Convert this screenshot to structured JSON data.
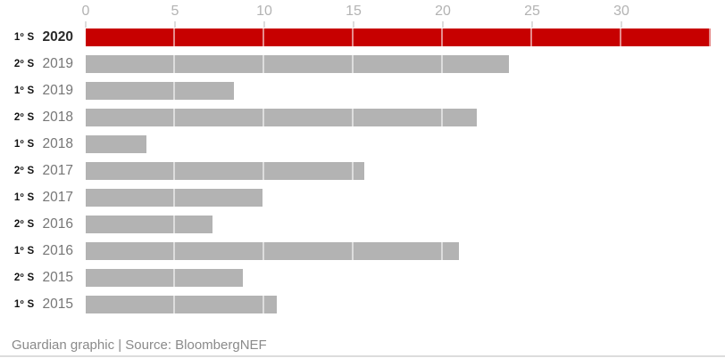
{
  "chart_data": {
    "type": "bar",
    "orientation": "horizontal",
    "title": "",
    "xlabel": "",
    "ylabel": "",
    "x_axis_position": "top",
    "x_ticks": [
      0,
      5,
      10,
      15,
      20,
      25,
      30
    ],
    "xlim": [
      0,
      35.8
    ],
    "grid": "vertical, drawn over bars only",
    "legend": "none",
    "categories": [
      "1º S 2020",
      "2º S 2019",
      "1º S 2019",
      "2º S 2018",
      "1º S 2018",
      "2º S 2017",
      "1º S 2017",
      "2º S 2016",
      "1º S 2016",
      "2º S 2015",
      "1º S 2015"
    ],
    "values": [
      35.0,
      23.7,
      8.3,
      21.9,
      3.4,
      15.6,
      9.9,
      7.1,
      20.9,
      8.8,
      10.7
    ],
    "highlight_category": "1º S 2020",
    "bar_color": "#b3b3b3",
    "highlight_color": "#c70000"
  },
  "rows": [
    {
      "semester": "1º S",
      "year": "2020",
      "value": 35.0,
      "highlighted": true
    },
    {
      "semester": "2º S",
      "year": "2019",
      "value": 23.7,
      "highlighted": false
    },
    {
      "semester": "1º S",
      "year": "2019",
      "value": 8.3,
      "highlighted": false
    },
    {
      "semester": "2º S",
      "year": "2018",
      "value": 21.9,
      "highlighted": false
    },
    {
      "semester": "1º S",
      "year": "2018",
      "value": 3.4,
      "highlighted": false
    },
    {
      "semester": "2º S",
      "year": "2017",
      "value": 15.6,
      "highlighted": false
    },
    {
      "semester": "1º S",
      "year": "2017",
      "value": 9.9,
      "highlighted": false
    },
    {
      "semester": "2º S",
      "year": "2016",
      "value": 7.1,
      "highlighted": false
    },
    {
      "semester": "1º S",
      "year": "2016",
      "value": 20.9,
      "highlighted": false
    },
    {
      "semester": "2º S",
      "year": "2015",
      "value": 8.8,
      "highlighted": false
    },
    {
      "semester": "1º S",
      "year": "2015",
      "value": 10.7,
      "highlighted": false
    }
  ],
  "axis_tick_labels": [
    "0",
    "5",
    "10",
    "15",
    "20",
    "25",
    "30"
  ],
  "colors": {
    "highlight_bar": "#c70000",
    "bar": "#b3b3b3",
    "gridline": "#dcdcdc",
    "axis_text": "#b3b3b3",
    "year_text": "#767676",
    "semester_text": "#121212",
    "footer_text": "#8a8a8a"
  },
  "footer": {
    "credit": "Guardian graphic | Source: BloombergNEF"
  }
}
